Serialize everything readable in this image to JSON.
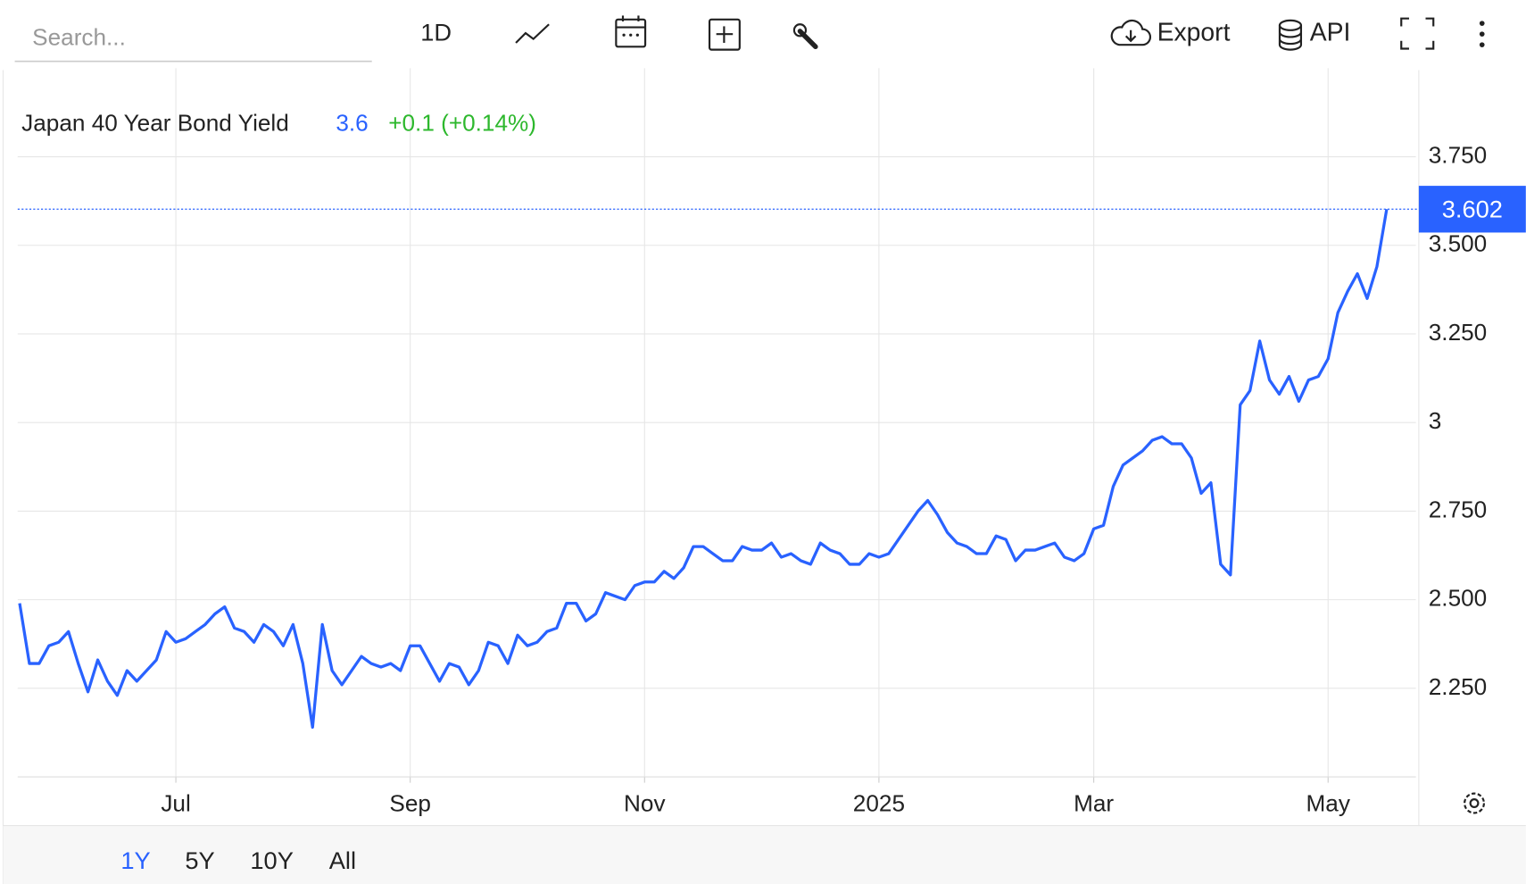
{
  "ui": {
    "search_placeholder": "Search...",
    "interval": "1D",
    "export": "Export",
    "api": "API",
    "ranges": [
      "1Y",
      "5Y",
      "10Y",
      "All"
    ]
  },
  "chart_data": {
    "type": "line",
    "title": "Japan 40 Year Bond Yield",
    "price_label": "3.6",
    "change_label": "+0.1 (+0.14%)",
    "series": [
      {
        "name": "Japan 40 Year Bond Yield",
        "color": "#2962ff",
        "values": [
          2.49,
          2.32,
          2.32,
          2.37,
          2.38,
          2.41,
          2.32,
          2.24,
          2.33,
          2.27,
          2.23,
          2.3,
          2.27,
          2.3,
          2.33,
          2.41,
          2.38,
          2.39,
          2.41,
          2.43,
          2.46,
          2.48,
          2.42,
          2.41,
          2.38,
          2.43,
          2.41,
          2.37,
          2.43,
          2.32,
          2.14,
          2.43,
          2.3,
          2.26,
          2.3,
          2.34,
          2.32,
          2.31,
          2.32,
          2.3,
          2.37,
          2.37,
          2.32,
          2.27,
          2.32,
          2.31,
          2.26,
          2.3,
          2.38,
          2.37,
          2.32,
          2.4,
          2.37,
          2.38,
          2.41,
          2.42,
          2.49,
          2.49,
          2.44,
          2.46,
          2.52,
          2.51,
          2.5,
          2.54,
          2.55,
          2.55,
          2.58,
          2.56,
          2.59,
          2.65,
          2.65,
          2.63,
          2.61,
          2.61,
          2.65,
          2.64,
          2.64,
          2.66,
          2.62,
          2.63,
          2.61,
          2.6,
          2.66,
          2.64,
          2.63,
          2.6,
          2.6,
          2.63,
          2.62,
          2.63,
          2.67,
          2.71,
          2.75,
          2.78,
          2.74,
          2.69,
          2.66,
          2.65,
          2.63,
          2.63,
          2.68,
          2.67,
          2.61,
          2.64,
          2.64,
          2.65,
          2.66,
          2.62,
          2.61,
          2.63,
          2.7,
          2.71,
          2.82,
          2.88,
          2.9,
          2.92,
          2.95,
          2.96,
          2.94,
          2.94,
          2.9,
          2.8,
          2.83,
          2.6,
          2.57,
          3.05,
          3.09,
          3.23,
          3.12,
          3.08,
          3.13,
          3.06,
          3.12,
          3.13,
          3.18,
          3.31,
          3.37,
          3.42,
          3.35,
          3.44,
          3.602
        ]
      }
    ],
    "xticks": [
      {
        "value": 16,
        "label": "Jul"
      },
      {
        "value": 40,
        "label": "Sep"
      },
      {
        "value": 64,
        "label": "Nov"
      },
      {
        "value": 88,
        "label": "2025"
      },
      {
        "value": 110,
        "label": "Mar"
      },
      {
        "value": 134,
        "label": "May"
      }
    ],
    "ylim": [
      2.0,
      4.0
    ],
    "yticks": [
      {
        "value": 2.25,
        "label": "2.250"
      },
      {
        "value": 2.5,
        "label": "2.500"
      },
      {
        "value": 2.75,
        "label": "2.750"
      },
      3,
      {
        "value": 3.25,
        "label": "3.250"
      },
      {
        "value": 3.5,
        "label": "3.500"
      },
      {
        "value": 3.75,
        "label": "3.750"
      }
    ],
    "grid": true,
    "change_color": "#2db82d"
  }
}
